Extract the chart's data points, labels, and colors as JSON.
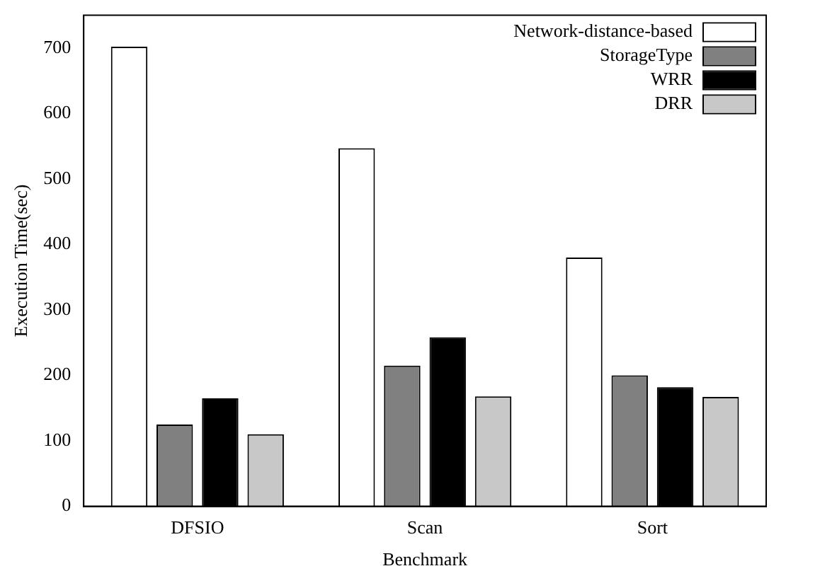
{
  "chart_data": {
    "type": "bar",
    "xlabel": "Benchmark",
    "ylabel": "Execution Time(sec)",
    "categories": [
      "DFSIO",
      "Scan",
      "Sort"
    ],
    "series": [
      {
        "name": "Network-distance-based",
        "color": "#ffffff",
        "values": [
          702,
          547,
          380
        ]
      },
      {
        "name": "StorageType",
        "color": "#808080",
        "values": [
          125,
          215,
          200
        ]
      },
      {
        "name": "WRR",
        "color": "#000000",
        "values": [
          165,
          258,
          182
        ]
      },
      {
        "name": "DRR",
        "color": "#c8c8c8",
        "values": [
          110,
          168,
          167
        ]
      }
    ],
    "ylim": [
      0,
      750
    ],
    "yticks": [
      0,
      100,
      200,
      300,
      400,
      500,
      600,
      700
    ],
    "grid": false,
    "legend": "top right"
  }
}
